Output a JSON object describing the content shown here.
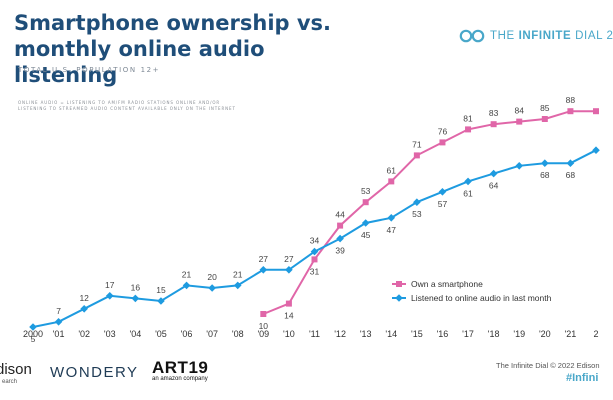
{
  "header": {
    "title": "Smartphone ownership vs. monthly online audio listening",
    "subtitle": "TOTAL U.S. POPULATION 12+",
    "note": "ONLINE AUDIO = LISTENING TO AM/FM RADIO STATIONS ONLINE AND/OR LISTENING TO STREAMED AUDIO CONTENT AVAILABLE ONLY ON THE INTERNET",
    "brand_prefix": "THE ",
    "brand_bold": "INFINITE",
    "brand_suffix": " DIAL 2"
  },
  "chart_data": {
    "type": "line",
    "categories": [
      "2000",
      "'01",
      "'02",
      "'03",
      "'04",
      "'05",
      "'06",
      "'07",
      "'08",
      "'09",
      "'10",
      "'11",
      "'12",
      "'13",
      "'14",
      "'15",
      "'16",
      "'17",
      "'18",
      "'19",
      "'20",
      "'21",
      "2"
    ],
    "series": [
      {
        "name": "Own a smartphone",
        "color": "#e066a8",
        "marker": "square",
        "values": [
          null,
          null,
          null,
          null,
          null,
          null,
          null,
          null,
          null,
          10,
          14,
          31,
          44,
          53,
          61,
          71,
          76,
          81,
          83,
          84,
          85,
          88,
          88
        ]
      },
      {
        "name": "Listened to online audio in last month",
        "color": "#1e9be0",
        "marker": "diamond",
        "values": [
          5,
          7,
          12,
          17,
          16,
          15,
          21,
          20,
          21,
          27,
          27,
          34,
          39,
          45,
          47,
          53,
          57,
          61,
          64,
          67,
          68,
          68,
          73
        ]
      }
    ],
    "data_labels": {
      "Own a smartphone": [
        "",
        "",
        "",
        "",
        "",
        "",
        "",
        "",
        "",
        "10",
        "14",
        "31",
        "44",
        "53",
        "61",
        "71",
        "76",
        "81",
        "83",
        "84",
        "85",
        "88",
        ""
      ],
      "Listened to online audio in last month": [
        "5",
        "7",
        "12",
        "17",
        "16",
        "15",
        "21",
        "20",
        "21",
        "27",
        "27",
        "34",
        "39",
        "45",
        "47",
        "53",
        "57",
        "61",
        "64",
        "",
        "68",
        "68",
        ""
      ]
    },
    "ylim": [
      0,
      100
    ],
    "legend_position": "bottom-right",
    "grid": false
  },
  "footer": {
    "edison_main": "dison",
    "edison_sub": "earch",
    "wondery": "WONDERY",
    "art19": "ART19",
    "art19_sub": "an amazon company",
    "copyright": "The Infinite Dial  © 2022 Edison",
    "hashtag": "#Infini"
  }
}
